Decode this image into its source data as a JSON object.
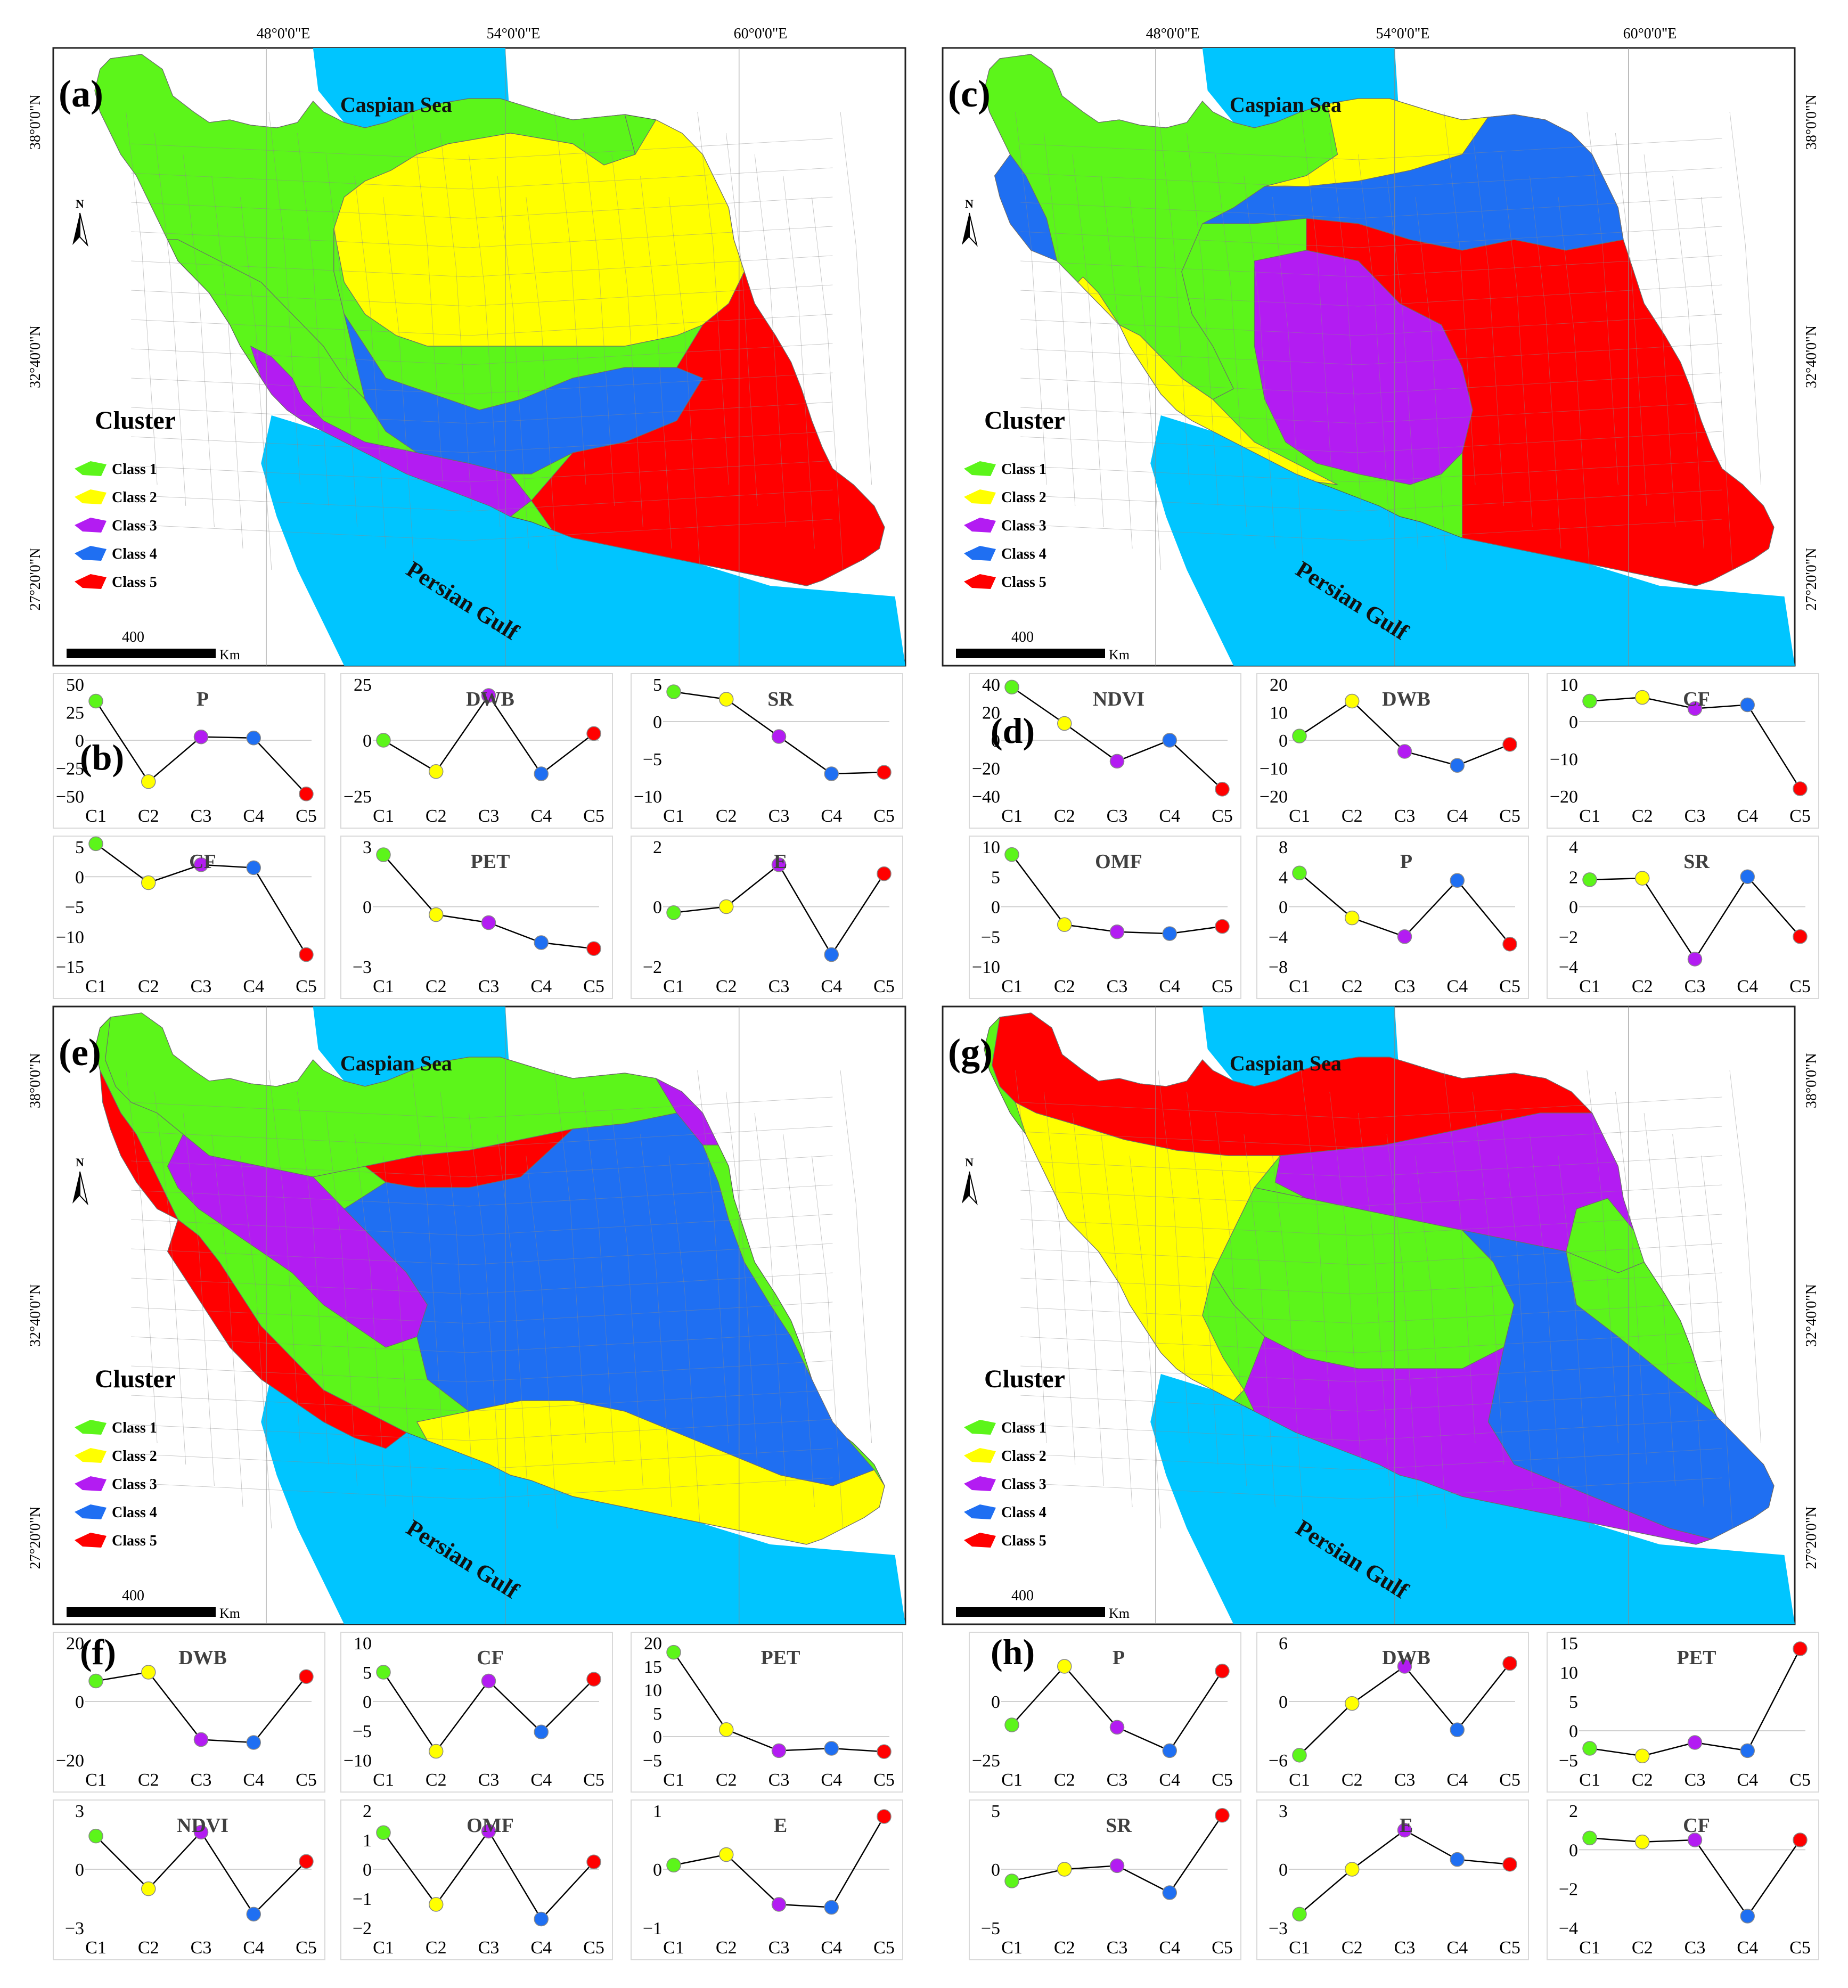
{
  "colors": {
    "class1": "#5cf51a",
    "class2": "#ffff00",
    "class3": "#b31cf2",
    "class4": "#1f6ff2",
    "class5": "#ff0000",
    "sea": "#00c5ff",
    "border": "#707070"
  },
  "labels": {
    "lon1": "48°0'0\"E",
    "lon2": "54°0'0\"E",
    "lon3": "60°0'0\"E",
    "lat1": "38°0'0\"N",
    "lat2": "32°40'0\"N",
    "lat3": "27°20'0\"N",
    "caspian": "Caspian Sea",
    "gulf": "Persian Gulf",
    "cluster": "Cluster",
    "north": "N",
    "scale_value": "400",
    "scale_unit": "Km",
    "classes": [
      "Class 1",
      "Class 2",
      "Class 3",
      "Class 4",
      "Class 5"
    ]
  },
  "panels": {
    "a": "(a)",
    "b": "(b)",
    "c": "(c)",
    "d": "(d)",
    "e": "(e)",
    "f": "(f)",
    "g": "(g)",
    "h": "(h)"
  },
  "maps": [
    {
      "panel": "(a)",
      "regions": [
        "class1 northwest-west",
        "class2 central",
        "class3 southwest-south-north",
        "class4 south-central",
        "class5 southeast"
      ]
    },
    {
      "panel": "(c)",
      "regions": [
        "class1 northwest",
        "class2 north-southwest",
        "class3 central-south",
        "class4 northeast-west",
        "class5 east"
      ]
    },
    {
      "panel": "(e)",
      "regions": [
        "class1 north",
        "class2 south",
        "class3 west",
        "class4 center-east",
        "class5 west-north"
      ]
    },
    {
      "panel": "(g)",
      "regions": [
        "class1 center",
        "class2 west",
        "class3 north-east-south",
        "class4 southeast",
        "class5 north"
      ]
    }
  ],
  "chart_data": [
    {
      "type": "line",
      "panel": "(b)",
      "title": "P",
      "categories": [
        "C1",
        "C2",
        "C3",
        "C4",
        "C5"
      ],
      "values": [
        35,
        -37,
        3,
        2,
        -48
      ],
      "ylim": [
        -50,
        50
      ],
      "yticks": [
        "50",
        "25",
        "0",
        "−25",
        "−50"
      ]
    },
    {
      "type": "line",
      "panel": "(b)",
      "title": "DWB",
      "categories": [
        "C1",
        "C2",
        "C3",
        "C4",
        "C5"
      ],
      "values": [
        0,
        -14,
        20,
        -15,
        3
      ],
      "ylim": [
        -25,
        25
      ],
      "yticks": [
        "25",
        "0",
        "−25"
      ]
    },
    {
      "type": "line",
      "panel": "(b)",
      "title": "SR",
      "categories": [
        "C1",
        "C2",
        "C3",
        "C4",
        "C5"
      ],
      "values": [
        4,
        3,
        -2,
        -7,
        -6.8
      ],
      "ylim": [
        -10,
        5
      ],
      "yticks": [
        "5",
        "0",
        "−5",
        "−10"
      ]
    },
    {
      "type": "line",
      "panel": "(b)",
      "title": "CF",
      "categories": [
        "C1",
        "C2",
        "C3",
        "C4",
        "C5"
      ],
      "values": [
        5.5,
        -1,
        2,
        1.5,
        -13
      ],
      "ylim": [
        -15,
        5
      ],
      "yticks": [
        "5",
        "0",
        "−5",
        "−10",
        "−15"
      ]
    },
    {
      "type": "line",
      "panel": "(b)",
      "title": "PET",
      "categories": [
        "C1",
        "C2",
        "C3",
        "C4",
        "C5"
      ],
      "values": [
        2.6,
        -0.4,
        -0.8,
        -1.8,
        -2.1
      ],
      "ylim": [
        -3,
        3
      ],
      "yticks": [
        "3",
        "0",
        "−3"
      ]
    },
    {
      "type": "line",
      "panel": "(b)",
      "title": "E",
      "categories": [
        "C1",
        "C2",
        "C3",
        "C4",
        "C5"
      ],
      "values": [
        -0.2,
        0,
        1.4,
        -1.6,
        1.1
      ],
      "ylim": [
        -2,
        2
      ],
      "yticks": [
        "2",
        "0",
        "−2"
      ]
    },
    {
      "type": "line",
      "panel": "(d)",
      "title": "NDVI",
      "categories": [
        "C1",
        "C2",
        "C3",
        "C4",
        "C5"
      ],
      "values": [
        38,
        12,
        -15,
        0,
        -35
      ],
      "ylim": [
        -40,
        40
      ],
      "yticks": [
        "40",
        "20",
        "0",
        "−20",
        "−40"
      ]
    },
    {
      "type": "line",
      "panel": "(d)",
      "title": "DWB",
      "categories": [
        "C1",
        "C2",
        "C3",
        "C4",
        "C5"
      ],
      "values": [
        1.5,
        14,
        -4,
        -9,
        -1.5
      ],
      "ylim": [
        -20,
        20
      ],
      "yticks": [
        "20",
        "10",
        "0",
        "−10",
        "−20"
      ]
    },
    {
      "type": "line",
      "panel": "(d)",
      "title": "CF",
      "categories": [
        "C1",
        "C2",
        "C3",
        "C4",
        "C5"
      ],
      "values": [
        5.5,
        6.5,
        3.5,
        4.5,
        -18
      ],
      "ylim": [
        -20,
        10
      ],
      "yticks": [
        "10",
        "0",
        "−10",
        "−20"
      ]
    },
    {
      "type": "line",
      "panel": "(d)",
      "title": "OMF",
      "categories": [
        "C1",
        "C2",
        "C3",
        "C4",
        "C5"
      ],
      "values": [
        8.7,
        -3,
        -4.2,
        -4.5,
        -3.3
      ],
      "ylim": [
        -10,
        10
      ],
      "yticks": [
        "10",
        "5",
        "0",
        "−5",
        "−10"
      ]
    },
    {
      "type": "line",
      "panel": "(d)",
      "title": "P",
      "categories": [
        "C1",
        "C2",
        "C3",
        "C4",
        "C5"
      ],
      "values": [
        4.5,
        -1.5,
        -4,
        3.5,
        -5
      ],
      "ylim": [
        -8,
        8
      ],
      "yticks": [
        "8",
        "4",
        "0",
        "−4",
        "−8"
      ]
    },
    {
      "type": "line",
      "panel": "(d)",
      "title": "SR",
      "categories": [
        "C1",
        "C2",
        "C3",
        "C4",
        "C5"
      ],
      "values": [
        1.8,
        1.9,
        -3.5,
        2,
        -2
      ],
      "ylim": [
        -4,
        4
      ],
      "yticks": [
        "4",
        "2",
        "0",
        "−2",
        "−4"
      ]
    },
    {
      "type": "line",
      "panel": "(f)",
      "title": "DWB",
      "categories": [
        "C1",
        "C2",
        "C3",
        "C4",
        "C5"
      ],
      "values": [
        7,
        10,
        -13,
        -14,
        8.5
      ],
      "ylim": [
        -20,
        20
      ],
      "yticks": [
        "20",
        "0",
        "−20"
      ]
    },
    {
      "type": "line",
      "panel": "(f)",
      "title": "CF",
      "categories": [
        "C1",
        "C2",
        "C3",
        "C4",
        "C5"
      ],
      "values": [
        5,
        -8.5,
        3.5,
        -5.2,
        3.8
      ],
      "ylim": [
        -10,
        10
      ],
      "yticks": [
        "10",
        "5",
        "0",
        "−5",
        "−10"
      ]
    },
    {
      "type": "line",
      "panel": "(f)",
      "title": "PET",
      "categories": [
        "C1",
        "C2",
        "C3",
        "C4",
        "C5"
      ],
      "values": [
        18,
        1.5,
        -3,
        -2.5,
        -3.2
      ],
      "ylim": [
        -5,
        20
      ],
      "yticks": [
        "20",
        "15",
        "10",
        "5",
        "0",
        "−5"
      ]
    },
    {
      "type": "line",
      "panel": "(f)",
      "title": "NDVI",
      "categories": [
        "C1",
        "C2",
        "C3",
        "C4",
        "C5"
      ],
      "values": [
        1.7,
        -1,
        1.9,
        -2.3,
        0.4
      ],
      "ylim": [
        -3,
        3
      ],
      "yticks": [
        "3",
        "0",
        "−3"
      ]
    },
    {
      "type": "line",
      "panel": "(f)",
      "title": "OMF",
      "categories": [
        "C1",
        "C2",
        "C3",
        "C4",
        "C5"
      ],
      "values": [
        1.25,
        -1.2,
        1.3,
        -1.7,
        0.25
      ],
      "ylim": [
        -2,
        2
      ],
      "yticks": [
        "2",
        "1",
        "0",
        "−1",
        "−2"
      ]
    },
    {
      "type": "line",
      "panel": "(f)",
      "title": "E",
      "categories": [
        "C1",
        "C2",
        "C3",
        "C4",
        "C5"
      ],
      "values": [
        0.07,
        0.25,
        -0.6,
        -0.65,
        0.9
      ],
      "ylim": [
        -1,
        1
      ],
      "yticks": [
        "1",
        "0",
        "−1"
      ]
    },
    {
      "type": "line",
      "panel": "(h)",
      "title": "P",
      "categories": [
        "C1",
        "C2",
        "C3",
        "C4",
        "C5"
      ],
      "values": [
        -10,
        15,
        -11,
        -21,
        13
      ],
      "ylim": [
        -25,
        25
      ],
      "yticks": [
        "0",
        "−25"
      ]
    },
    {
      "type": "line",
      "panel": "(h)",
      "title": "DWB",
      "categories": [
        "C1",
        "C2",
        "C3",
        "C4",
        "C5"
      ],
      "values": [
        -5.5,
        -0.2,
        3.6,
        -2.9,
        3.9
      ],
      "ylim": [
        -6,
        6
      ],
      "yticks": [
        "6",
        "0",
        "−6"
      ]
    },
    {
      "type": "line",
      "panel": "(h)",
      "title": "PET",
      "categories": [
        "C1",
        "C2",
        "C3",
        "C4",
        "C5"
      ],
      "values": [
        -3,
        -4.3,
        -2,
        -3.4,
        14
      ],
      "ylim": [
        -5,
        15
      ],
      "yticks": [
        "15",
        "10",
        "5",
        "0",
        "−5"
      ]
    },
    {
      "type": "line",
      "panel": "(h)",
      "title": "SR",
      "categories": [
        "C1",
        "C2",
        "C3",
        "C4",
        "C5"
      ],
      "values": [
        -1,
        0,
        0.3,
        -2,
        4.6
      ],
      "ylim": [
        -5,
        5
      ],
      "yticks": [
        "5",
        "0",
        "−5"
      ]
    },
    {
      "type": "line",
      "panel": "(h)",
      "title": "E",
      "categories": [
        "C1",
        "C2",
        "C3",
        "C4",
        "C5"
      ],
      "values": [
        -2.3,
        0,
        2,
        0.5,
        0.25
      ],
      "ylim": [
        -3,
        3
      ],
      "yticks": [
        "3",
        "0",
        "−3"
      ]
    },
    {
      "type": "line",
      "panel": "(h)",
      "title": "CF",
      "categories": [
        "C1",
        "C2",
        "C3",
        "C4",
        "C5"
      ],
      "values": [
        0.6,
        0.4,
        0.5,
        -3.4,
        0.5
      ],
      "ylim": [
        -4,
        2
      ],
      "yticks": [
        "2",
        "0",
        "−2",
        "−4"
      ]
    }
  ]
}
